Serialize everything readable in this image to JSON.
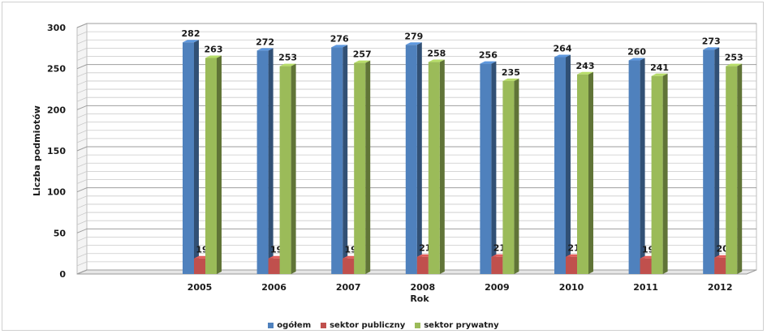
{
  "chart_data": {
    "type": "bar",
    "title": "",
    "xlabel": "Rok",
    "ylabel": "Liczba podmiotów",
    "ylim": [
      0,
      300
    ],
    "yticks": [
      0,
      50,
      100,
      150,
      200,
      250,
      300
    ],
    "categories": [
      "2005",
      "2006",
      "2007",
      "2008",
      "2009",
      "2010",
      "2011",
      "2012"
    ],
    "series": [
      {
        "name": "ogółem",
        "color": "#4f81bd",
        "values": [
          282,
          272,
          276,
          279,
          256,
          264,
          260,
          273
        ]
      },
      {
        "name": "sektor publiczny",
        "color": "#c0504d",
        "values": [
          19,
          19,
          19,
          21,
          21,
          21,
          19,
          20
        ]
      },
      {
        "name": "sektor prywatny",
        "color": "#9bbb59",
        "values": [
          263,
          253,
          257,
          258,
          235,
          243,
          241,
          253
        ]
      }
    ],
    "grid": true,
    "legend_position": "bottom",
    "style": "3d-clustered-column"
  }
}
